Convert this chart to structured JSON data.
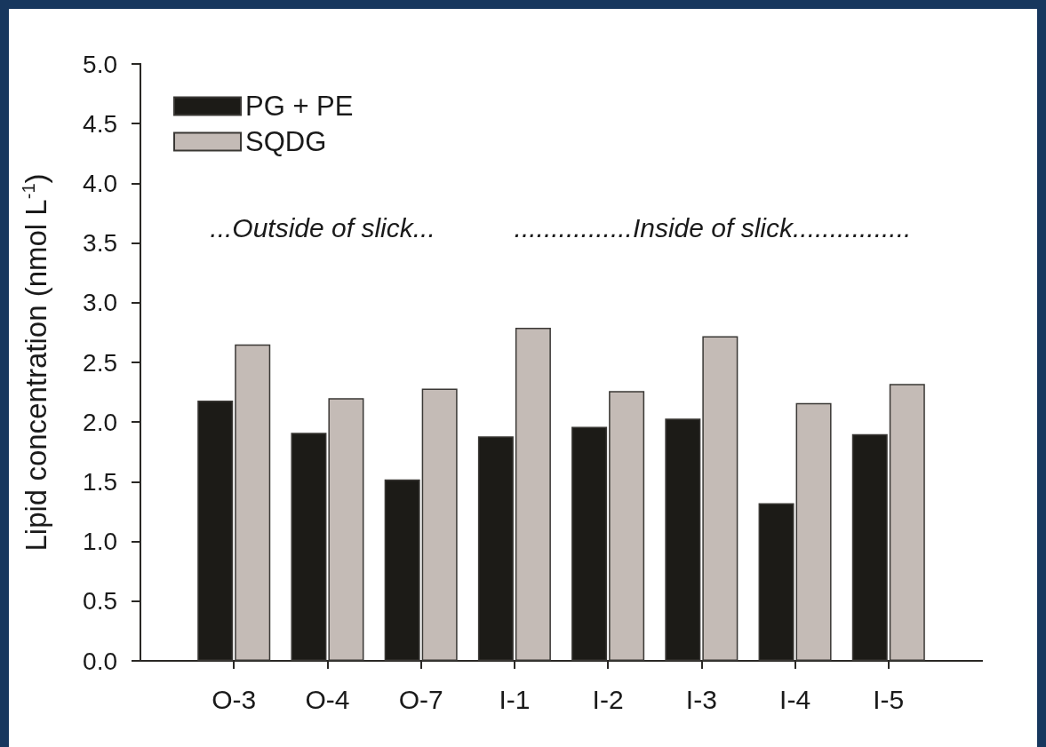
{
  "chart_data": {
    "type": "bar",
    "ylabel": "Lipid concentration (nmol L$^{-1}$)",
    "categories": [
      "O-3",
      "O-4",
      "O-7",
      "I-1",
      "I-2",
      "I-3",
      "I-4",
      "I-5"
    ],
    "series": [
      {
        "name": "PG + PE",
        "color": "#1c1b17",
        "values": [
          2.18,
          1.91,
          1.52,
          1.88,
          1.96,
          2.03,
          1.32,
          1.9
        ]
      },
      {
        "name": "SQDG",
        "color": "#c4bbb6",
        "values": [
          2.65,
          2.2,
          2.28,
          2.79,
          2.26,
          2.72,
          2.16,
          2.32
        ]
      }
    ],
    "ylim": [
      0,
      5
    ],
    "yticks": [
      {
        "value": 0,
        "label": "0.0"
      },
      0.5,
      {
        "value": 1,
        "label": "1.0"
      },
      1.5,
      {
        "value": 2,
        "label": "2.0"
      },
      2.5,
      {
        "value": 3,
        "label": "3.0"
      },
      3.5,
      {
        "value": 4,
        "label": "4.0"
      },
      4.5,
      {
        "value": 5,
        "label": "5.0"
      }
    ],
    "legend": "top left",
    "annotations": [
      "...Outside of slick...",
      "................Inside of slick................"
    ]
  }
}
